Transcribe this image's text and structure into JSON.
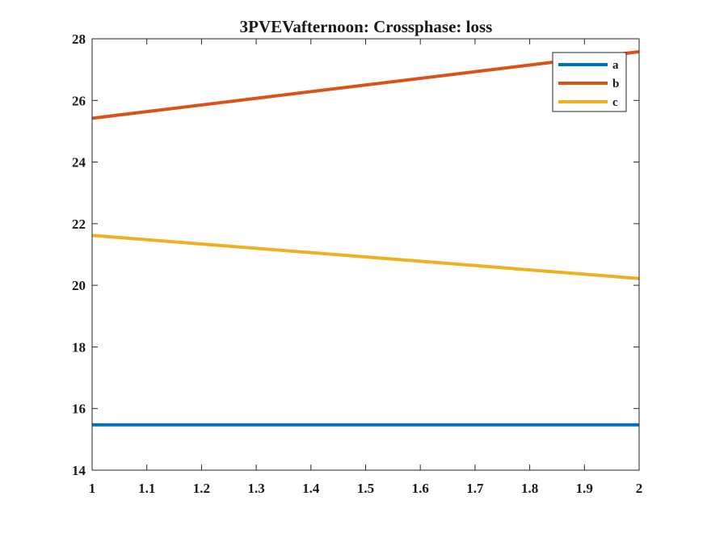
{
  "chart_data": {
    "type": "line",
    "title": "3PVEVafternoon: Crossphase: loss",
    "xlabel": "",
    "ylabel": "",
    "xlim": [
      1,
      2
    ],
    "ylim": [
      14,
      28
    ],
    "x": [
      1,
      2
    ],
    "xticks": [
      1,
      1.1,
      1.2,
      1.3,
      1.4,
      1.5,
      1.6,
      1.7,
      1.8,
      1.9,
      2
    ],
    "xtick_labels": [
      "1",
      "1.1",
      "1.2",
      "1.3",
      "1.4",
      "1.5",
      "1.6",
      "1.7",
      "1.8",
      "1.9",
      "2"
    ],
    "yticks": [
      14,
      16,
      18,
      20,
      22,
      24,
      26,
      28
    ],
    "ytick_labels": [
      "14",
      "16",
      "18",
      "20",
      "22",
      "24",
      "26",
      "28"
    ],
    "grid": false,
    "legend_position": "top-right",
    "series": [
      {
        "name": "a",
        "values": [
          15.47,
          15.47
        ],
        "color": "#0072BD"
      },
      {
        "name": "b",
        "values": [
          25.42,
          27.58
        ],
        "color": "#D95319"
      },
      {
        "name": "c",
        "values": [
          21.62,
          20.22
        ],
        "color": "#EDB120"
      }
    ]
  }
}
